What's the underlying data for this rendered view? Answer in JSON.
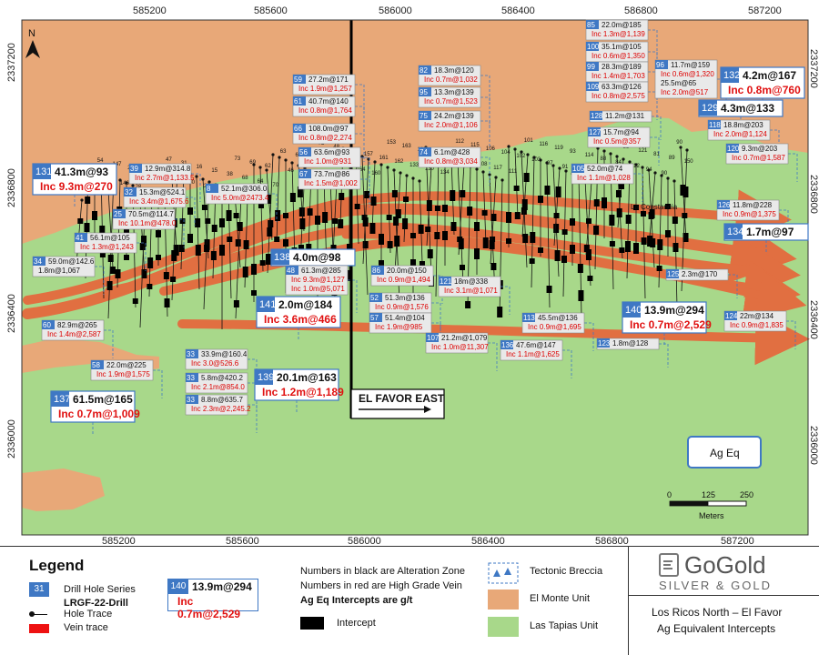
{
  "x_ticks": [
    "585200",
    "585600",
    "586000",
    "586400",
    "586800",
    "587200"
  ],
  "y_ticks": [
    "2337200",
    "2336800",
    "2336400",
    "2336000"
  ],
  "north_label": "N",
  "section_label": "EL FAVOR EAST",
  "town_label": "La Constancia",
  "ag_eq_label": "Ag Eq",
  "scale": {
    "ticks": [
      "0",
      "125",
      "250"
    ],
    "unit": "Meters"
  },
  "callouts": [
    {
      "id": "131",
      "main": "41.3m@93",
      "inc": "Inc 9.3m@270",
      "style": "big"
    },
    {
      "id": "132",
      "main": "4.2m@167",
      "inc": "Inc 0.8m@760",
      "style": "big"
    },
    {
      "id": "129",
      "main": "4.3m@133",
      "inc": "",
      "style": "big"
    },
    {
      "id": "134",
      "main": "1.7m@97",
      "inc": "",
      "style": "big"
    },
    {
      "id": "138",
      "main": "4.0m@98",
      "inc": "",
      "style": "big"
    },
    {
      "id": "141",
      "main": "2.0m@184",
      "inc": "Inc 3.6m@466",
      "style": "big"
    },
    {
      "id": "139",
      "main": "20.1m@163",
      "inc": "Inc 1.2m@1,189",
      "style": "big"
    },
    {
      "id": "137",
      "main": "61.5m@165",
      "inc": "Inc 0.7m@1,009",
      "style": "big"
    },
    {
      "id": "140",
      "main": "13.9m@294",
      "inc": "Inc 0.7m@2,529",
      "style": "big"
    },
    {
      "id": "59",
      "main": "27.2m@171",
      "inc": "Inc 1.9m@1,257"
    },
    {
      "id": "61",
      "main": "40.7m@140",
      "inc": "Inc 0.8m@1,764"
    },
    {
      "id": "66",
      "main": "108.0m@97",
      "inc": "Inc 0.8m@2,274"
    },
    {
      "id": "56",
      "main": "63.6m@93",
      "inc": "Inc 1.0m@931"
    },
    {
      "id": "67",
      "main": "73.7m@86",
      "inc": "Inc 1.5m@1,002"
    },
    {
      "id": "39",
      "main": "12.9m@314.8",
      "inc": "Inc 2.7m@1,133.5"
    },
    {
      "id": "32",
      "main": "15.3m@524.1",
      "inc": "Inc 3.4m@1,675.6"
    },
    {
      "id": "8",
      "main": "52.1m@306.0",
      "inc": "Inc 5.0m@2473.4"
    },
    {
      "id": "25",
      "main": "70.5m@114.7",
      "inc": "Inc 10.1m@478.0"
    },
    {
      "id": "41",
      "main": "56.1m@105",
      "inc": "Inc 1.3m@1,243"
    },
    {
      "id": "34",
      "main": "59.0m@142.6",
      "inc": "1.8m@1,067",
      "inc_black": true
    },
    {
      "id": "48",
      "main": "61.3m@285",
      "inc": "Inc 9.3m@1,127",
      "inc2": "Inc 1.0m@5,071"
    },
    {
      "id": "60",
      "main": "82.9m@265",
      "inc": "Inc 1.4m@2,587"
    },
    {
      "id": "58",
      "main": "22.0m@225",
      "inc": "Inc 1.9m@1,575"
    },
    {
      "id": "33",
      "main": "33.9m@160.4",
      "inc": "Inc 3.0@526.6"
    },
    {
      "id": "33",
      "main": "5.8m@420.2",
      "inc": "Inc 2.1m@854.0"
    },
    {
      "id": "33",
      "main": "8.8m@635.7",
      "inc": "Inc 2.3m@2,245.2"
    },
    {
      "id": "82",
      "main": "18.3m@120",
      "inc": "Inc 0.7m@1,032"
    },
    {
      "id": "95",
      "main": "13.3m@139",
      "inc": "Inc 0.7m@1,523"
    },
    {
      "id": "75",
      "main": "24.2m@139",
      "inc": "Inc 2.0m@1,106"
    },
    {
      "id": "74",
      "main": "6.1m@428",
      "inc": "Inc 0.8m@3,034"
    },
    {
      "id": "86",
      "main": "20.0m@150",
      "inc": "Inc 0.9m@1,494"
    },
    {
      "id": "121",
      "main": "18m@338",
      "inc": "Inc 3.1m@1,071"
    },
    {
      "id": "52",
      "main": "51.3m@136",
      "inc": "Inc 0.9m@1,576"
    },
    {
      "id": "57",
      "main": "51.4m@104",
      "inc": "Inc 1.9m@985"
    },
    {
      "id": "107",
      "main": "21.2m@1,079",
      "inc": "Inc 1.0m@11,307"
    },
    {
      "id": "136",
      "main": "47.6m@147",
      "inc": "Inc 1.1m@1,625"
    },
    {
      "id": "113",
      "main": "45.5m@136",
      "inc": "Inc 0.9m@1,695"
    },
    {
      "id": "123",
      "main": "1.8m@128",
      "inc": ""
    },
    {
      "id": "85",
      "main": "22.0m@185",
      "inc": "Inc 1.3m@1,139"
    },
    {
      "id": "100",
      "main": "35.1m@105",
      "inc": "Inc 0.6m@1,350"
    },
    {
      "id": "99",
      "main": "28.3m@189",
      "inc": "Inc 1.4m@1,703"
    },
    {
      "id": "109",
      "main": "63.3m@126",
      "inc": "Inc 0.8m@2,575"
    },
    {
      "id": "96",
      "main": "11.7m@159",
      "inc": "Inc 0.6m@1,320",
      "main2": "25.5m@65",
      "inc2": "Inc 2.0m@517"
    },
    {
      "id": "128",
      "main": "11.2m@131",
      "inc": ""
    },
    {
      "id": "127",
      "main": "15.7m@94",
      "inc": "Inc 0.5m@357"
    },
    {
      "id": "105",
      "main": "52.0m@74",
      "inc": "Inc 1.1m@1,028"
    },
    {
      "id": "118",
      "main": "18.8m@203",
      "inc": "Inc 2.0m@1,124"
    },
    {
      "id": "120",
      "main": "9.3m@203",
      "inc": "Inc 0.7m@1,587"
    },
    {
      "id": "126",
      "main": "11.8m@228",
      "inc": "Inc 0.9m@1,375"
    },
    {
      "id": "125",
      "main": "2.3m@170",
      "inc": ""
    },
    {
      "id": "124",
      "main": "22m@134",
      "inc": "Inc 0.9m@1,835"
    }
  ],
  "hole_numbers": [
    "53",
    "55",
    "54",
    "43",
    "147",
    "146",
    "27",
    "28",
    "44",
    "37",
    "45",
    "47",
    "29",
    "31",
    "30",
    "16",
    "21",
    "15",
    "11",
    "38",
    "73",
    "68",
    "69",
    "64",
    "62",
    "70",
    "63",
    "46",
    "65",
    "49",
    "71",
    "72",
    "154",
    "48",
    "159",
    "155",
    "164",
    "157",
    "160",
    "161",
    "153",
    "162",
    "163",
    "133",
    "132",
    "130",
    "135",
    "134",
    "137",
    "112",
    "110",
    "115",
    "108",
    "106",
    "117",
    "104",
    "111",
    "102",
    "101",
    "103",
    "116",
    "97",
    "119",
    "91",
    "93",
    "92",
    "114",
    "87",
    "88",
    "98",
    "84",
    "88",
    "122",
    "121",
    "94",
    "81",
    "90",
    "89",
    "90",
    "150"
  ],
  "legend": {
    "title": "Legend",
    "series_example_num": "31",
    "series_label": "Drill Hole Series",
    "series_sub": "LRGF-22-Drill",
    "hole_trace": "Hole Trace",
    "vein_trace": "Vein trace",
    "sample_num": "140",
    "sample_main": "13.9m@294",
    "sample_inc": "Inc 0.7m@2,529",
    "note1": "Numbers in black are Alteration Zone",
    "note2": "Numbers in red are High Grade Vein",
    "note3": "Ag Eq Intercepts are g/t",
    "intercept": "Intercept",
    "breccia": "Tectonic Breccia",
    "monte": "El Monte Unit",
    "tapias": "Las Tapias Unit",
    "logo_name": "GoGold",
    "logo_sub": "SILVER & GOLD",
    "caption1": "Los Ricos North – El Favor",
    "caption2": "Ag Equivalent Intercepts"
  },
  "colors": {
    "monte": "#e8a878",
    "tapias": "#a8d88a",
    "vein": "#e8643a",
    "series_blue": "#3f78c4",
    "red_text": "#e01010"
  }
}
